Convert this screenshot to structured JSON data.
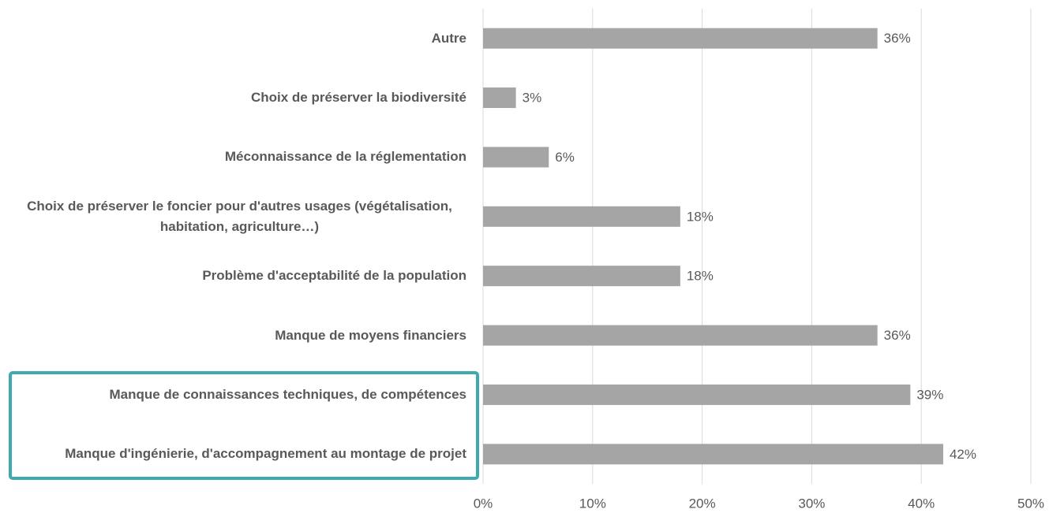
{
  "chart_data": {
    "type": "bar",
    "orientation": "horizontal",
    "categories": [
      "Autre",
      "Choix de préserver la biodiversité",
      "Méconnaissance de la réglementation",
      "Choix de préserver le foncier pour d'autres usages (végétalisation, habitation, agriculture…)",
      "Problème d'acceptabilité de la population",
      "Manque de moyens financiers",
      "Manque de connaissances techniques, de compétences",
      "Manque d'ingénierie, d'accompagnement au montage de projet"
    ],
    "values": [
      36,
      3,
      6,
      18,
      18,
      36,
      39,
      42
    ],
    "value_labels": [
      "36%",
      "3%",
      "6%",
      "18%",
      "18%",
      "36%",
      "39%",
      "42%"
    ],
    "color": "#a5a5a5",
    "xlim": [
      0,
      50
    ],
    "xticks": [
      {
        "value": 0,
        "label": "0%"
      },
      {
        "value": 10,
        "label": "10%"
      },
      {
        "value": 20,
        "label": "20%"
      },
      {
        "value": 30,
        "label": "30%"
      },
      {
        "value": 40,
        "label": "40%"
      },
      {
        "value": 50,
        "label": "50%"
      }
    ],
    "grid": true
  }
}
